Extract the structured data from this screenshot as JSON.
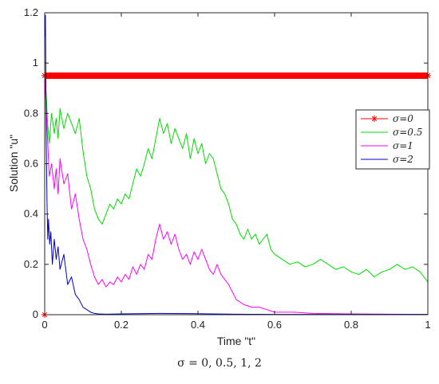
{
  "chart_data": {
    "type": "line",
    "xlabel": "Time \"t\"",
    "ylabel": "Solution \"u\"",
    "xlim": [
      0,
      1
    ],
    "ylim": [
      0,
      1.2
    ],
    "xticks": [
      "0",
      "0.2",
      "0.4",
      "0.6",
      "0.8",
      "1"
    ],
    "yticks": [
      "0",
      "0.2",
      "0.4",
      "0.6",
      "0.8",
      "1",
      "1.2"
    ],
    "legend_position": "right",
    "series": [
      {
        "name": "σ=0",
        "color": "#ff0000",
        "marker": "asterisk",
        "x": [
          0,
          0.02,
          0.04,
          0.06,
          0.08,
          0.1,
          0.12,
          0.14,
          0.16,
          0.18,
          0.2,
          0.22,
          0.24,
          0.26,
          0.28,
          0.3,
          0.32,
          0.34,
          0.36,
          0.38,
          0.4,
          0.42,
          0.44,
          0.46,
          0.48,
          0.5,
          0.52,
          0.54,
          0.56,
          0.58,
          0.6,
          0.62,
          0.64,
          0.66,
          0.68,
          0.7,
          0.72,
          0.74,
          0.76,
          0.78,
          0.8,
          0.82,
          0.84,
          0.86,
          0.88,
          0.9,
          0.92,
          0.94,
          0.96,
          0.98,
          1.0
        ],
        "y": [
          0.95,
          0.95,
          0.95,
          0.95,
          0.95,
          0.95,
          0.95,
          0.95,
          0.95,
          0.95,
          0.95,
          0.95,
          0.95,
          0.95,
          0.95,
          0.95,
          0.95,
          0.95,
          0.95,
          0.95,
          0.95,
          0.95,
          0.95,
          0.95,
          0.95,
          0.95,
          0.95,
          0.95,
          0.95,
          0.95,
          0.95,
          0.95,
          0.95,
          0.95,
          0.95,
          0.95,
          0.95,
          0.95,
          0.95,
          0.95,
          0.95,
          0.95,
          0.95,
          0.95,
          0.95,
          0.95,
          0.95,
          0.95,
          0.95,
          0.95,
          0.95
        ]
      },
      {
        "name": "σ=0.5",
        "color": "#00dd00",
        "x": [
          0,
          0.003,
          0.008,
          0.012,
          0.018,
          0.025,
          0.03,
          0.035,
          0.04,
          0.05,
          0.06,
          0.07,
          0.08,
          0.09,
          0.1,
          0.11,
          0.12,
          0.13,
          0.14,
          0.15,
          0.16,
          0.17,
          0.18,
          0.19,
          0.2,
          0.21,
          0.22,
          0.23,
          0.24,
          0.25,
          0.26,
          0.27,
          0.28,
          0.29,
          0.3,
          0.31,
          0.32,
          0.33,
          0.34,
          0.35,
          0.36,
          0.37,
          0.38,
          0.39,
          0.4,
          0.41,
          0.42,
          0.43,
          0.44,
          0.45,
          0.46,
          0.47,
          0.48,
          0.49,
          0.5,
          0.51,
          0.52,
          0.53,
          0.54,
          0.55,
          0.56,
          0.57,
          0.58,
          0.59,
          0.6,
          0.62,
          0.64,
          0.66,
          0.68,
          0.7,
          0.72,
          0.74,
          0.76,
          0.78,
          0.8,
          0.82,
          0.84,
          0.86,
          0.88,
          0.9,
          0.92,
          0.94,
          0.96,
          0.98,
          1.0
        ],
        "y": [
          0.96,
          0.9,
          0.75,
          0.68,
          0.8,
          0.72,
          0.78,
          0.7,
          0.82,
          0.74,
          0.8,
          0.76,
          0.72,
          0.78,
          0.65,
          0.55,
          0.5,
          0.42,
          0.38,
          0.36,
          0.4,
          0.44,
          0.42,
          0.46,
          0.44,
          0.48,
          0.46,
          0.52,
          0.58,
          0.55,
          0.6,
          0.66,
          0.62,
          0.7,
          0.78,
          0.72,
          0.76,
          0.68,
          0.74,
          0.7,
          0.66,
          0.72,
          0.62,
          0.7,
          0.64,
          0.68,
          0.6,
          0.64,
          0.62,
          0.56,
          0.5,
          0.48,
          0.44,
          0.38,
          0.36,
          0.32,
          0.3,
          0.34,
          0.3,
          0.32,
          0.28,
          0.3,
          0.32,
          0.26,
          0.24,
          0.22,
          0.2,
          0.21,
          0.19,
          0.2,
          0.22,
          0.2,
          0.18,
          0.19,
          0.17,
          0.16,
          0.18,
          0.15,
          0.17,
          0.18,
          0.2,
          0.18,
          0.19,
          0.17,
          0.13
        ]
      },
      {
        "name": "σ=1",
        "color": "#ff00ff",
        "x": [
          0,
          0.003,
          0.008,
          0.012,
          0.018,
          0.025,
          0.03,
          0.035,
          0.04,
          0.05,
          0.06,
          0.07,
          0.08,
          0.09,
          0.1,
          0.11,
          0.12,
          0.13,
          0.14,
          0.15,
          0.16,
          0.17,
          0.18,
          0.19,
          0.2,
          0.21,
          0.22,
          0.23,
          0.24,
          0.25,
          0.26,
          0.27,
          0.28,
          0.29,
          0.3,
          0.31,
          0.32,
          0.33,
          0.34,
          0.35,
          0.36,
          0.37,
          0.38,
          0.39,
          0.4,
          0.41,
          0.42,
          0.43,
          0.44,
          0.45,
          0.46,
          0.47,
          0.48,
          0.5,
          0.52,
          0.54,
          0.56,
          0.58,
          0.6,
          0.65,
          0.7,
          0.8,
          0.9,
          1.0
        ],
        "y": [
          0.96,
          0.85,
          0.68,
          0.55,
          0.6,
          0.5,
          0.58,
          0.48,
          0.62,
          0.52,
          0.56,
          0.42,
          0.48,
          0.38,
          0.3,
          0.26,
          0.2,
          0.15,
          0.12,
          0.14,
          0.11,
          0.13,
          0.12,
          0.15,
          0.13,
          0.16,
          0.14,
          0.19,
          0.16,
          0.2,
          0.18,
          0.24,
          0.22,
          0.3,
          0.36,
          0.3,
          0.33,
          0.28,
          0.32,
          0.26,
          0.22,
          0.24,
          0.2,
          0.25,
          0.22,
          0.26,
          0.22,
          0.18,
          0.16,
          0.2,
          0.16,
          0.14,
          0.12,
          0.06,
          0.04,
          0.03,
          0.03,
          0.02,
          0.01,
          0.01,
          0.005,
          0.003,
          0.002,
          0.001
        ]
      },
      {
        "name": "σ=2",
        "color": "#0000cc",
        "x": [
          0,
          0.002,
          0.004,
          0.006,
          0.008,
          0.01,
          0.013,
          0.016,
          0.02,
          0.025,
          0.03,
          0.035,
          0.04,
          0.05,
          0.06,
          0.07,
          0.08,
          0.09,
          0.1,
          0.11,
          0.12,
          0.13,
          0.14,
          0.16,
          0.2,
          0.3,
          0.4,
          0.5,
          0.6,
          0.8,
          1.0
        ],
        "y": [
          1.1,
          1.19,
          0.7,
          0.45,
          0.3,
          0.38,
          0.28,
          0.33,
          0.2,
          0.3,
          0.22,
          0.27,
          0.18,
          0.24,
          0.12,
          0.15,
          0.08,
          0.06,
          0.03,
          0.02,
          0.01,
          0.005,
          0.003,
          0.002,
          0.003,
          0.005,
          0.004,
          0.002,
          0.001,
          0.001,
          0.001
        ]
      }
    ]
  },
  "caption": "σ = 0, 0.5, 1,  2"
}
